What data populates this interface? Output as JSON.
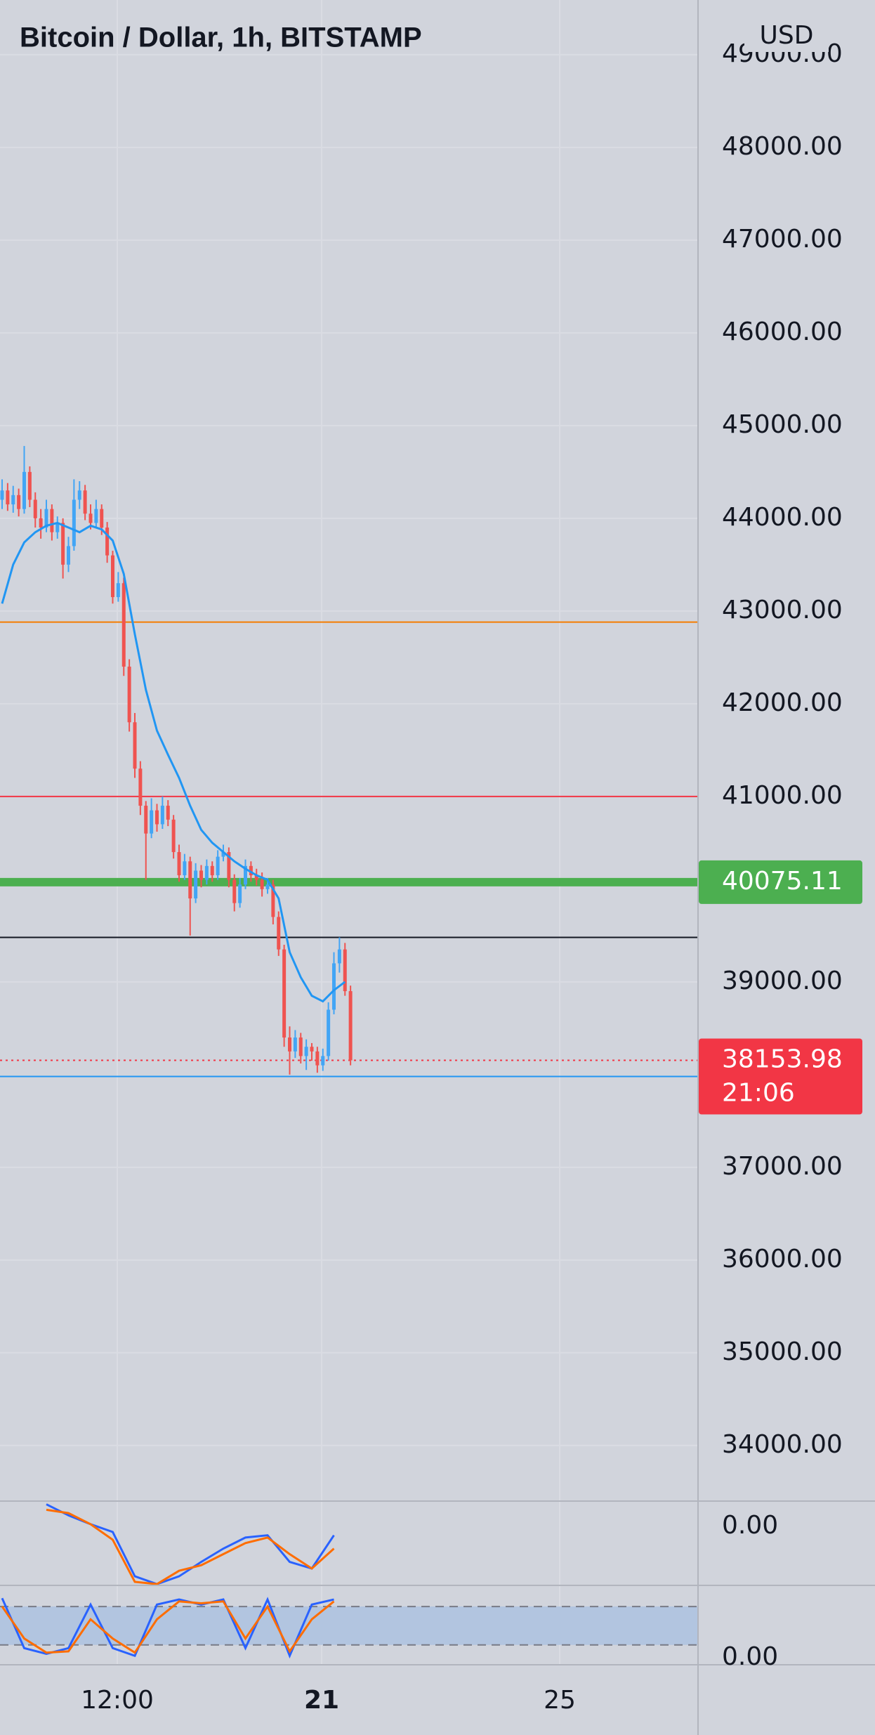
{
  "chart_data": {
    "type": "candlestick",
    "title": "Bitcoin / Dollar, 1h, BITSTAMP",
    "currency": "USD",
    "up_color": "#42a5f5",
    "down_color": "#ef5350",
    "grid": true,
    "candles": [
      [
        44200,
        44420,
        44100,
        44300
      ],
      [
        44300,
        44380,
        44080,
        44150
      ],
      [
        44150,
        44350,
        44060,
        44250
      ],
      [
        44250,
        44320,
        44020,
        44100
      ],
      [
        44100,
        44780,
        44050,
        44500
      ],
      [
        44500,
        44560,
        44120,
        44200
      ],
      [
        44200,
        44280,
        43900,
        44000
      ],
      [
        44000,
        44100,
        43780,
        43900
      ],
      [
        43900,
        44200,
        43850,
        44100
      ],
      [
        44100,
        44150,
        43760,
        43850
      ],
      [
        43850,
        44020,
        43780,
        43950
      ],
      [
        43950,
        44000,
        43350,
        43500
      ],
      [
        43500,
        43800,
        43420,
        43700
      ],
      [
        43700,
        44420,
        43650,
        44200
      ],
      [
        44200,
        44400,
        44100,
        44300
      ],
      [
        44300,
        44360,
        43980,
        44050
      ],
      [
        44050,
        44150,
        43880,
        43950
      ],
      [
        43950,
        44200,
        43900,
        44100
      ],
      [
        44100,
        44150,
        43820,
        43900
      ],
      [
        43900,
        43960,
        43520,
        43600
      ],
      [
        43600,
        43650,
        43080,
        43150
      ],
      [
        43150,
        43420,
        43100,
        43300
      ],
      [
        43300,
        43360,
        42300,
        42400
      ],
      [
        42400,
        42480,
        41700,
        41800
      ],
      [
        41800,
        41900,
        41200,
        41300
      ],
      [
        41300,
        41380,
        40800,
        40900
      ],
      [
        40900,
        40950,
        40100,
        40600
      ],
      [
        40600,
        40980,
        40550,
        40850
      ],
      [
        40850,
        40920,
        40620,
        40700
      ],
      [
        40700,
        41000,
        40650,
        40900
      ],
      [
        40900,
        40960,
        40680,
        40750
      ],
      [
        40750,
        40800,
        40330,
        40400
      ],
      [
        40400,
        40480,
        40080,
        40150
      ],
      [
        40150,
        40380,
        40100,
        40300
      ],
      [
        40300,
        40350,
        39500,
        39900
      ],
      [
        39900,
        40280,
        39850,
        40200
      ],
      [
        40200,
        40260,
        40020,
        40100
      ],
      [
        40100,
        40320,
        40050,
        40250
      ],
      [
        40250,
        40300,
        40080,
        40150
      ],
      [
        40150,
        40420,
        40100,
        40350
      ],
      [
        40350,
        40480,
        40300,
        40400
      ],
      [
        40400,
        40450,
        40020,
        40100
      ],
      [
        40100,
        40160,
        39760,
        39850
      ],
      [
        39850,
        40120,
        39800,
        40050
      ],
      [
        40050,
        40320,
        40000,
        40250
      ],
      [
        40250,
        40300,
        40080,
        40150
      ],
      [
        40150,
        40220,
        40040,
        40100
      ],
      [
        40100,
        40180,
        39920,
        40000
      ],
      [
        40000,
        40120,
        39950,
        40050
      ],
      [
        40050,
        40100,
        39620,
        39700
      ],
      [
        39700,
        39760,
        39280,
        39350
      ],
      [
        39350,
        39400,
        38300,
        38400
      ],
      [
        38400,
        38520,
        38000,
        38250
      ],
      [
        38250,
        38480,
        38180,
        38400
      ],
      [
        38400,
        38450,
        38120,
        38200
      ],
      [
        38200,
        38380,
        38050,
        38300
      ],
      [
        38300,
        38340,
        38150,
        38250
      ],
      [
        38250,
        38300,
        38020,
        38100
      ],
      [
        38100,
        38280,
        38040,
        38200
      ],
      [
        38200,
        38780,
        38150,
        38700
      ],
      [
        38700,
        39320,
        38650,
        39200
      ],
      [
        39200,
        39480,
        39100,
        39350
      ],
      [
        39350,
        39420,
        38850,
        38900
      ],
      [
        38900,
        38960,
        38100,
        38153.98
      ]
    ],
    "ma": {
      "color": "#2196f3",
      "values": [
        43080,
        43500,
        43740,
        43850,
        43920,
        43950,
        43900,
        43850,
        43920,
        43880,
        43760,
        43400,
        42750,
        42150,
        41710,
        41450,
        41200,
        40900,
        40640,
        40500,
        40400,
        40300,
        40220,
        40150,
        40100,
        39900,
        39320,
        39050,
        38850,
        38790,
        38910,
        39000
      ]
    },
    "ylim": [
      33400,
      49590
    ],
    "yticks": [
      {
        "value": 49000,
        "label": "49000.00"
      },
      {
        "value": 48000,
        "label": "48000.00"
      },
      {
        "value": 47000,
        "label": "47000.00"
      },
      {
        "value": 46000,
        "label": "46000.00"
      },
      {
        "value": 45000,
        "label": "45000.00"
      },
      {
        "value": 44000,
        "label": "44000.00"
      },
      {
        "value": 43000,
        "label": "43000.00"
      },
      {
        "value": 42000,
        "label": "42000.00"
      },
      {
        "value": 41000,
        "label": "41000.00"
      },
      {
        "value": 39000,
        "label": "39000.00"
      },
      {
        "value": 37000,
        "label": "37000.00"
      },
      {
        "value": 36000,
        "label": "36000.00"
      },
      {
        "value": 35000,
        "label": "35000.00"
      },
      {
        "value": 34000,
        "label": "34000.00"
      }
    ],
    "levels": [
      {
        "value": 42880,
        "color": "#f57c00",
        "line_style": "solid"
      },
      {
        "value": 41000,
        "color": "#f23645",
        "line_style": "solid"
      },
      {
        "value": 40075.11,
        "color": "#4caf50",
        "line_style": "thick",
        "price_label": true
      },
      {
        "value": 39480,
        "color": "#131722",
        "line_style": "solid"
      },
      {
        "value": 38153.98,
        "color": "#f23645",
        "line_style": "dotted",
        "price_label": true,
        "countdown": "21:06"
      },
      {
        "value": 37980,
        "color": "#2196f3",
        "line_style": "solid"
      }
    ],
    "x_tick_labels": [
      "12:00",
      "21",
      "25"
    ],
    "panes": [
      {
        "type": "line",
        "ylim": [
          -1000,
          430
        ],
        "yticks": [
          {
            "value": 0,
            "label": "0.00"
          }
        ],
        "series": [
          {
            "color": "#2962ff",
            "values": [
              null,
              null,
              376,
              188,
              38,
              -94,
              -846,
              -978,
              -846,
              -602,
              -376,
              -188,
              -150,
              -602,
              -714,
              -150
            ]
          },
          {
            "color": "#ff6d00",
            "values": [
              null,
              null,
              282,
              226,
              38,
              -226,
              -940,
              -978,
              -752,
              -658,
              -470,
              -282,
              -188,
              -470,
              -714,
              -376
            ]
          }
        ]
      },
      {
        "type": "line",
        "ylim": [
          -11,
          113
        ],
        "yticks": [
          {
            "value": 0,
            "label": "0.00"
          }
        ],
        "bands": [
          20,
          80
        ],
        "band_color": "#b2c5e0",
        "series": [
          {
            "color": "#2962ff",
            "values": [
              93,
              15,
              6,
              15,
              83,
              15,
              3,
              83,
              91,
              83,
              91,
              15,
              91,
              3,
              83,
              91
            ]
          },
          {
            "color": "#ff6d00",
            "values": [
              80,
              30,
              8,
              10,
              60,
              30,
              8,
              60,
              88,
              85,
              88,
              30,
              80,
              10,
              60,
              88
            ]
          }
        ]
      }
    ]
  }
}
